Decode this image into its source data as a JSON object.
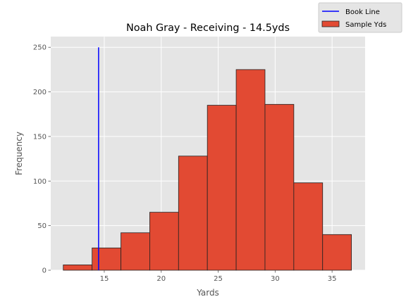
{
  "chart_data": {
    "type": "bar",
    "title": "Noah Gray - Receiving - 14.5yds",
    "xlabel": "Yards",
    "ylabel": "Frequency",
    "xlim": [
      10.3,
      37.9
    ],
    "ylim": [
      0,
      262
    ],
    "xticks": [
      15,
      20,
      25,
      30,
      35
    ],
    "yticks": [
      0,
      50,
      100,
      150,
      200,
      250
    ],
    "grid": true,
    "legend_position": "top-right",
    "colors": {
      "background": "#E5E5E5",
      "bar": "#E24A33",
      "bar_edge": "#222222",
      "book_line": "#0000FF"
    },
    "histogram": {
      "name": "Sample Yds",
      "bin_edges": [
        11.4,
        13.93,
        16.46,
        18.99,
        21.52,
        24.05,
        26.58,
        29.11,
        31.64,
        34.17,
        36.7
      ],
      "counts": [
        6,
        25,
        42,
        65,
        128,
        185,
        225,
        186,
        98,
        40
      ]
    },
    "book_line": {
      "name": "Book Line",
      "x": 14.5,
      "y_range": [
        0,
        250
      ]
    }
  }
}
